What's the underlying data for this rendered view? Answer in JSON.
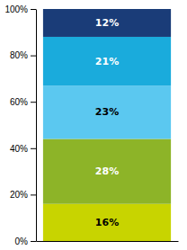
{
  "chart_data": {
    "type": "bar",
    "stacked": true,
    "data_labels": true,
    "grid": false,
    "tick_labels": "y",
    "categories": [
      null
    ],
    "series": [
      {
        "color": "#c8d400",
        "values": [
          16
        ],
        "value_labels": [
          "16%"
        ]
      },
      {
        "color": "#8db428",
        "values": [
          28
        ],
        "value_labels": [
          "28%"
        ]
      },
      {
        "color": "#5bc8f0",
        "values": [
          23
        ],
        "value_labels": [
          "23%"
        ]
      },
      {
        "color": "#1aabdc",
        "values": [
          21
        ],
        "value_labels": [
          "21%"
        ]
      },
      {
        "color": "#1a3c78",
        "values": [
          12
        ],
        "value_labels": [
          "12%"
        ]
      }
    ],
    "ylim": [
      0,
      100
    ],
    "yticks": [
      {
        "value": 0,
        "label": "0%"
      },
      {
        "value": 20,
        "label": "20%"
      },
      {
        "value": 40,
        "label": "40%"
      },
      {
        "value": 60,
        "label": "60%"
      },
      {
        "value": 80,
        "label": "80%"
      },
      {
        "value": 100,
        "label": "100%"
      }
    ]
  }
}
